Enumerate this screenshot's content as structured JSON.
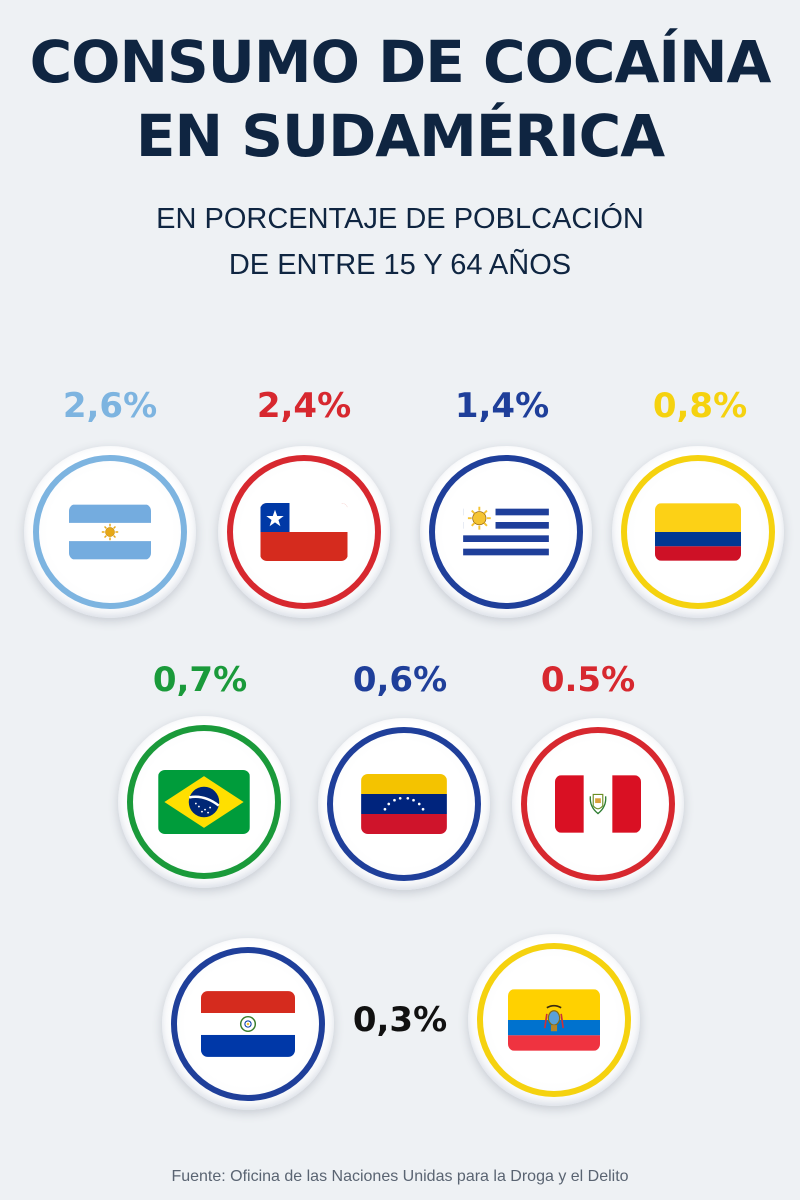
{
  "title_line1": "CONSUMO DE COCAÍNA",
  "title_line2": "EN SUDAMÉRICA",
  "subtitle_line1": "EN PORCENTAJE DE POBLCACIÓN",
  "subtitle_line2": "DE ENTRE 15 Y 64 AÑOS",
  "source": "Fuente: Oficina de las Naciones Unidas para la Droga y el Delito",
  "shared_label": "0,3%",
  "colors": {
    "title": "#0f2541",
    "argentina": "#7db4e0",
    "chile": "#d7282f",
    "uruguay": "#1f3f9a",
    "colombia": "#f5d20f",
    "brazil": "#1a9a3a",
    "venezuela": "#1f3f9a",
    "peru": "#d7282f",
    "paraguay": "#1f3f9a",
    "ecuador": "#f5d20f"
  },
  "chart_data": {
    "type": "table",
    "title": "CONSUMO DE COCAÍNA EN SUDAMÉRICA",
    "subtitle": "EN PORCENTAJE DE POBLCACIÓN DE ENTRE 15 Y 64 AÑOS",
    "categories": [
      "argentina-flag",
      "chile-flag",
      "uruguay-flag",
      "colombia-flag",
      "brazil-flag",
      "venezuela-flag",
      "peru-flag",
      "paraguay-flag",
      "ecuador-flag"
    ],
    "values": [
      2.6,
      2.4,
      1.4,
      0.8,
      0.7,
      0.6,
      0.5,
      0.3,
      0.3
    ],
    "labels": [
      "2,6%",
      "2,4%",
      "1,4%",
      "0,8%",
      "0,7%",
      "0,6%",
      "0.5%",
      "0,3%",
      "0,3%"
    ],
    "unit": "%"
  }
}
